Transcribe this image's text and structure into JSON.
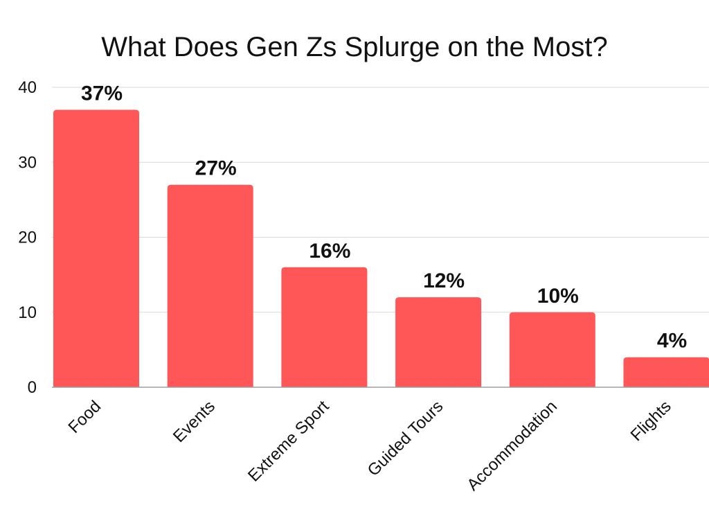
{
  "chart_data": {
    "type": "bar",
    "title": "What Does Gen Zs Splurge on the Most?",
    "xlabel": "",
    "ylabel": "",
    "categories": [
      "Food",
      "Events",
      "Extreme Sport",
      "Guided Tours",
      "Accommodation",
      "Flights"
    ],
    "values": [
      37,
      27,
      16,
      12,
      10,
      4
    ],
    "data_labels": [
      "37%",
      "27%",
      "16%",
      "12%",
      "10%",
      "4%"
    ],
    "ylim": [
      0,
      40
    ],
    "yticks": [
      0,
      10,
      20,
      30,
      40
    ],
    "grid": true,
    "legend": "none",
    "colors": {
      "bar": "#FF5757",
      "grid": "#D9D9D9",
      "axis": "#9E9E9E",
      "text": "#111111"
    }
  }
}
